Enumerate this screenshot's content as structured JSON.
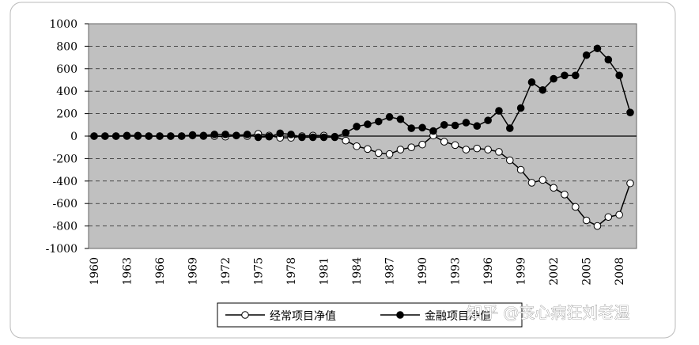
{
  "chart_data": {
    "type": "line",
    "categories": [
      "1960",
      null,
      null,
      "1963",
      null,
      null,
      "1966",
      null,
      null,
      "1969",
      null,
      null,
      "1972",
      null,
      null,
      "1975",
      null,
      null,
      "1978",
      null,
      null,
      "1981",
      null,
      null,
      "1984",
      null,
      null,
      "1987",
      null,
      null,
      "1990",
      null,
      null,
      "1993",
      null,
      null,
      "1996",
      null,
      null,
      "1999",
      null,
      null,
      "2002",
      null,
      null,
      "2005",
      null,
      null,
      "2008",
      null
    ],
    "series": [
      {
        "name": "经常项目净值",
        "color": "#ffffff",
        "values": [
          0,
          0,
          0,
          5,
          5,
          0,
          0,
          0,
          0,
          5,
          0,
          0,
          -5,
          5,
          0,
          20,
          5,
          -15,
          -15,
          0,
          5,
          5,
          -5,
          -40,
          -90,
          -115,
          -150,
          -160,
          -120,
          -100,
          -75,
          5,
          -50,
          -80,
          -120,
          -110,
          -120,
          -140,
          -215,
          -300,
          -415,
          -390,
          -460,
          -520,
          -630,
          -750,
          -800,
          -720,
          -700,
          -420
        ]
      },
      {
        "name": "金融项目净值",
        "color": "#000000",
        "values": [
          0,
          0,
          0,
          0,
          0,
          0,
          0,
          0,
          0,
          10,
          5,
          15,
          15,
          5,
          15,
          -10,
          -5,
          25,
          15,
          -10,
          -10,
          -10,
          -10,
          30,
          85,
          105,
          130,
          170,
          150,
          70,
          75,
          45,
          100,
          95,
          120,
          90,
          140,
          225,
          70,
          250,
          480,
          410,
          510,
          540,
          540,
          720,
          780,
          680,
          540,
          210
        ]
      }
    ],
    "ylim": [
      -1000,
      1000
    ],
    "yticks": [
      -1000,
      -800,
      -600,
      -400,
      -200,
      0,
      200,
      400,
      600,
      800,
      1000
    ],
    "grid": true,
    "legend": "bottom"
  },
  "watermark": "知乎 @丧心病狂刘老湿"
}
